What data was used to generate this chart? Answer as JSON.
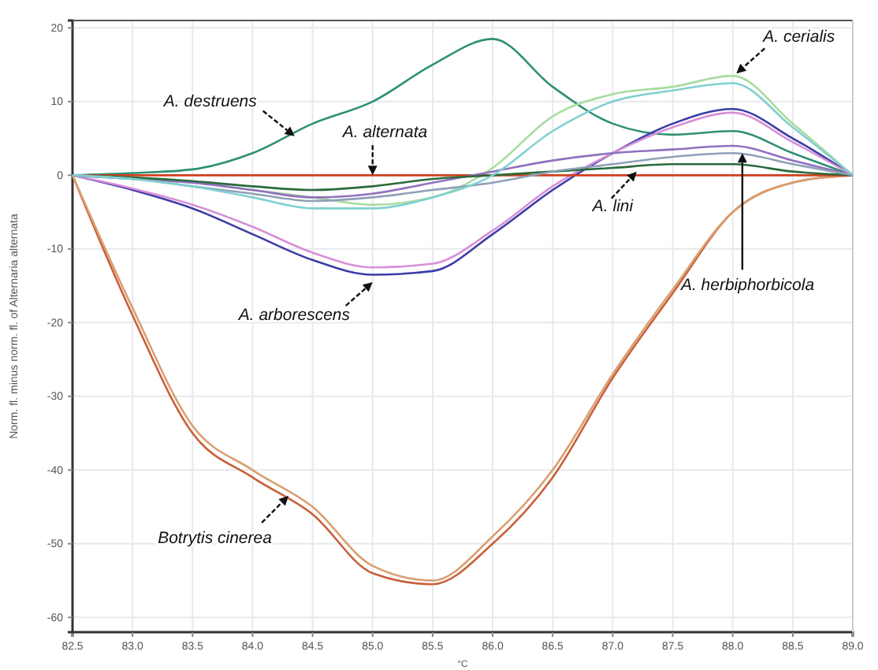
{
  "chart_data": {
    "type": "line",
    "xlabel": "°C",
    "ylabel": "Norm. fl. minus norm. fl. of Alternaria alternata",
    "xlim": [
      82.5,
      89.0
    ],
    "ylim": [
      -62,
      21
    ],
    "xticks": [
      {
        "value": 82.5,
        "label": "82.5"
      },
      {
        "value": 83,
        "label": "83.0"
      },
      {
        "value": 83.5,
        "label": "83.5"
      },
      {
        "value": 84,
        "label": "84.0"
      },
      {
        "value": 84.5,
        "label": "84.5"
      },
      {
        "value": 85,
        "label": "85.0"
      },
      {
        "value": 85.5,
        "label": "85.5"
      },
      {
        "value": 86,
        "label": "86.0"
      },
      {
        "value": 86.5,
        "label": "86.5"
      },
      {
        "value": 87,
        "label": "87.0"
      },
      {
        "value": 87.5,
        "label": "87.5"
      },
      {
        "value": 88,
        "label": "88.0"
      },
      {
        "value": 88.5,
        "label": "88.5"
      },
      {
        "value": 89,
        "label": "89.0"
      }
    ],
    "yticks": [
      20,
      10,
      0,
      -10,
      -20,
      -30,
      -40,
      -50,
      -60
    ],
    "grid": true,
    "line_style": "solid",
    "marker": "none",
    "x": [
      82.5,
      83.0,
      83.5,
      84.0,
      84.5,
      85.0,
      85.5,
      86.0,
      86.5,
      87.0,
      87.5,
      88.0,
      88.5,
      89.0
    ],
    "series": [
      {
        "color": "#2f8f74",
        "values": [
          0,
          0.3,
          0.8,
          3,
          7,
          10,
          15,
          18.5,
          12,
          7,
          5.5,
          6,
          3,
          0
        ]
      },
      {
        "color": "#a8dca0",
        "values": [
          0,
          -0.5,
          -1,
          -2,
          -3,
          -4,
          -3,
          1,
          8,
          11,
          12,
          13.5,
          7,
          0
        ]
      },
      {
        "color": "#3c3ca6",
        "values": [
          0,
          -2,
          -4.5,
          -8,
          -11.5,
          -13.5,
          -13,
          -8,
          -2,
          3,
          7,
          9,
          5,
          0
        ]
      },
      {
        "color": "#d890d8",
        "values": [
          0,
          -1.8,
          -4,
          -7,
          -10.5,
          -12.5,
          -12,
          -7.5,
          -1.5,
          3,
          6.5,
          8.5,
          4.5,
          0
        ]
      },
      {
        "color": "#c8603a",
        "values": [
          0,
          -19,
          -35,
          -41,
          -46,
          -54,
          -55.5,
          -50,
          -41,
          -27.5,
          -16,
          -5,
          -1,
          0
        ]
      },
      {
        "color": "#d9a070",
        "values": [
          0,
          -18,
          -34,
          -40,
          -45,
          -53,
          -55,
          -49,
          -40,
          -27,
          -15.5,
          -5,
          -1,
          0
        ]
      },
      {
        "color": "#d04020",
        "values": [
          0,
          0,
          0,
          0,
          0,
          0,
          0,
          0,
          0,
          0,
          0,
          0,
          0,
          0
        ]
      },
      {
        "color": "#9070c0",
        "values": [
          0,
          -0.5,
          -1,
          -2,
          -3,
          -2.5,
          -1,
          0.5,
          2,
          3,
          3.5,
          4,
          2,
          0
        ]
      },
      {
        "color": "#2a6a3a",
        "values": [
          0,
          -0.3,
          -0.8,
          -1.5,
          -2,
          -1.5,
          -0.5,
          0,
          0.5,
          1,
          1.5,
          1.5,
          0.5,
          0
        ]
      },
      {
        "color": "#90a0b8",
        "values": [
          0,
          -0.5,
          -1.5,
          -2.5,
          -3.5,
          -3,
          -2,
          -1,
          0.5,
          1.5,
          2.5,
          3,
          1.5,
          0
        ]
      },
      {
        "color": "#80d0d0",
        "values": [
          0,
          -0.5,
          -1.5,
          -3,
          -4.5,
          -4.5,
          -3,
          0,
          6,
          10,
          11.5,
          12.5,
          6.5,
          0
        ]
      }
    ],
    "annotations": [
      {
        "text": "A. destruens",
        "x": 84.35,
        "y": 5.3
      },
      {
        "text": "A. alternata",
        "x": 85.0,
        "y": 0
      },
      {
        "text": "A. cerialis",
        "x": 88.03,
        "y": 13.8
      },
      {
        "text": "A. lini",
        "x": 87.2,
        "y": 0.5
      },
      {
        "text": "A. herbiphorbicola",
        "x": 88.08,
        "y": 3
      },
      {
        "text": "A. arborescens",
        "x": 85.0,
        "y": -14.5
      },
      {
        "text": "Botrytis cinerea",
        "x": 84.3,
        "y": -43.5
      }
    ]
  }
}
